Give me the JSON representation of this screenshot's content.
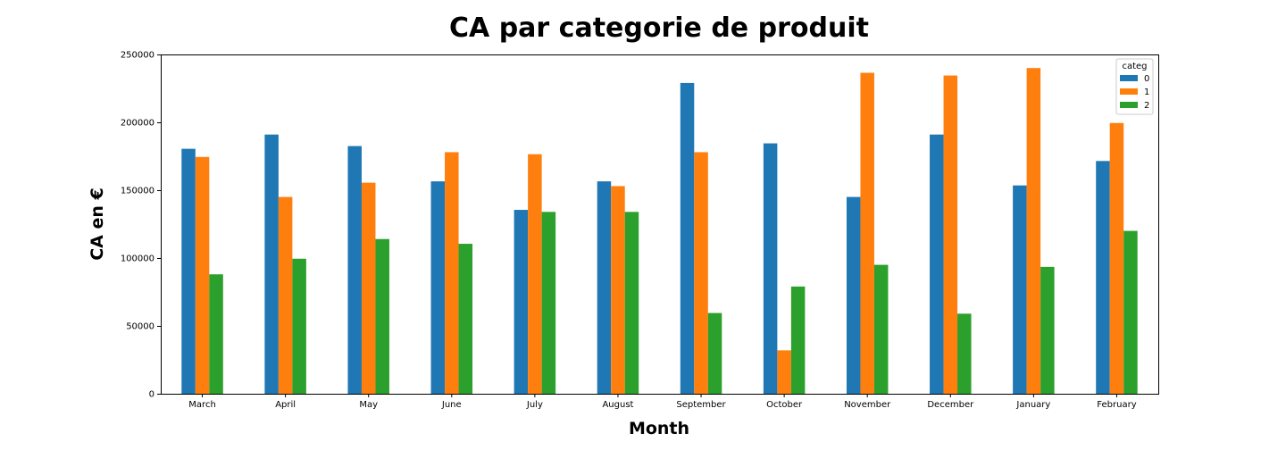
{
  "chart_data": {
    "type": "bar",
    "title": "CA par categorie de produit",
    "xlabel": "Month",
    "ylabel": "CA en €",
    "categories": [
      "March",
      "April",
      "May",
      "June",
      "July",
      "August",
      "September",
      "October",
      "November",
      "December",
      "January",
      "February"
    ],
    "series": [
      {
        "name": "0",
        "color": "#1f77b4",
        "values": [
          180500,
          191000,
          182500,
          156500,
          135500,
          156500,
          229000,
          184500,
          145000,
          191000,
          153500,
          171500
        ]
      },
      {
        "name": "1",
        "color": "#ff7f0e",
        "values": [
          174500,
          145000,
          155500,
          178000,
          176500,
          153000,
          178000,
          32000,
          236500,
          234500,
          240000,
          199500
        ]
      },
      {
        "name": "2",
        "color": "#2ca02c",
        "values": [
          88000,
          99500,
          114000,
          110500,
          134000,
          134000,
          59500,
          79000,
          95000,
          59000,
          93500,
          120000
        ]
      }
    ],
    "ylim": [
      0,
      250000
    ],
    "yticks": [
      0,
      50000,
      100000,
      150000,
      200000,
      250000
    ],
    "legend": {
      "title": "categ",
      "position": "top-right"
    },
    "grid": false
  }
}
